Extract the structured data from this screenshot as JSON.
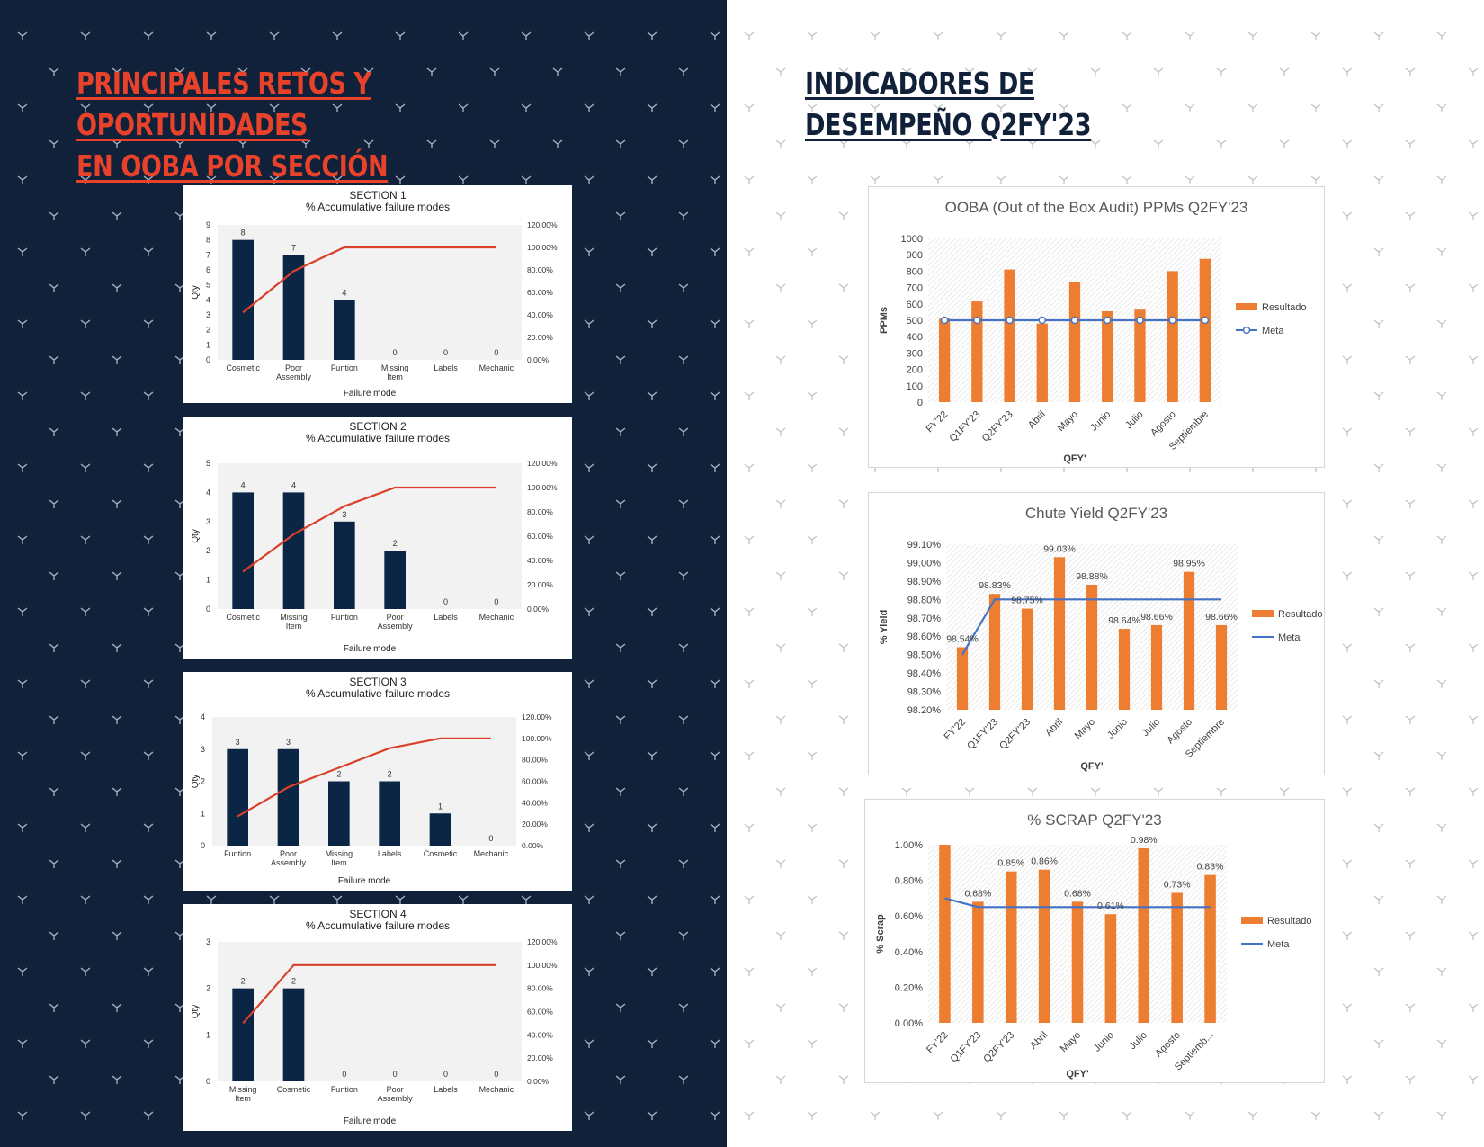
{
  "left_heading": {
    "line1": "PRINCIPALES RETOS Y OPORTUNIDADES",
    "line2": "EN OOBA POR SECCIÓN"
  },
  "right_heading": {
    "line1": "INDICADORES DE",
    "line2": "DESEMPEÑO Q2FY'23"
  },
  "colors": {
    "navy_bg": "#11213a",
    "accent_red": "#e8432a",
    "section_bar": "#0b2545",
    "section_line": "#d9412b",
    "result_bar": "#ed7d31",
    "meta_line": "#4472c4"
  },
  "chart_data": [
    {
      "id": "section1",
      "type": "bar",
      "title": "SECTION 1",
      "subtitle": "% Accumulative failure modes",
      "xlabel": "Failure mode",
      "ylabel": "Qty",
      "categories": [
        "Cosmetic",
        "Poor Assembly",
        "Funtion",
        "Missing Item",
        "Labels",
        "Mechanic"
      ],
      "values": [
        8,
        7,
        4,
        0,
        0,
        0
      ],
      "line_values": [
        42.1,
        78.9,
        100,
        100,
        100,
        100
      ],
      "ylim": [
        0,
        9
      ],
      "y_ticks": [
        "0",
        "1",
        "2",
        "3",
        "4",
        "5",
        "6",
        "7",
        "8",
        "9"
      ],
      "y2_ticks": [
        "0.00%",
        "20.00%",
        "40.00%",
        "60.00%",
        "80.00%",
        "100.00%",
        "120.00%"
      ],
      "y2lim": [
        0,
        120
      ]
    },
    {
      "id": "section2",
      "type": "bar",
      "title": "SECTION 2",
      "subtitle": "% Accumulative failure modes",
      "xlabel": "Failure mode",
      "ylabel": "Qty",
      "categories": [
        "Cosmetic",
        "Missing Item",
        "Funtion",
        "Poor Assembly",
        "Labels",
        "Mechanic"
      ],
      "values": [
        4,
        4,
        3,
        2,
        0,
        0
      ],
      "line_values": [
        30.8,
        61.5,
        84.6,
        100,
        100,
        100
      ],
      "ylim": [
        0,
        5
      ],
      "y_ticks": [
        "0",
        "1",
        "2",
        "3",
        "4",
        "5"
      ],
      "y2_ticks": [
        "0.00%",
        "20.00%",
        "40.00%",
        "60.00%",
        "80.00%",
        "100.00%",
        "120.00%"
      ],
      "y2lim": [
        0,
        120
      ]
    },
    {
      "id": "section3",
      "type": "bar",
      "title": "SECTION 3",
      "subtitle": "% Accumulative failure modes",
      "xlabel": "Failure mode",
      "ylabel": "Qty",
      "categories": [
        "Funtion",
        "Poor Assembly",
        "Missing Item",
        "Labels",
        "Cosmetic",
        "Mechanic"
      ],
      "values": [
        3,
        3,
        2,
        2,
        1,
        0
      ],
      "line_values": [
        27.3,
        54.5,
        72.7,
        90.9,
        100,
        100
      ],
      "ylim": [
        0,
        4
      ],
      "y_ticks": [
        "0",
        "1",
        "2",
        "3",
        "4"
      ],
      "y2_ticks": [
        "0.00%",
        "20.00%",
        "40.00%",
        "60.00%",
        "80.00%",
        "100.00%",
        "120.00%"
      ],
      "y2lim": [
        0,
        120
      ]
    },
    {
      "id": "section4",
      "type": "bar",
      "title": "SECTION 4",
      "subtitle": "% Accumulative failure modes",
      "xlabel": "Failure mode",
      "ylabel": "Qty",
      "categories": [
        "Missing Item",
        "Cosmetic",
        "Funtion",
        "Poor Assembly",
        "Labels",
        "Mechanic"
      ],
      "values": [
        2,
        2,
        0,
        0,
        0,
        0
      ],
      "line_values": [
        50,
        100,
        100,
        100,
        100,
        100
      ],
      "ylim": [
        0,
        3
      ],
      "y_ticks": [
        "0",
        "1",
        "2",
        "3"
      ],
      "y2_ticks": [
        "0.00%",
        "20.00%",
        "40.00%",
        "60.00%",
        "80.00%",
        "100.00%",
        "120.00%"
      ],
      "y2lim": [
        0,
        120
      ]
    },
    {
      "id": "ooba",
      "type": "bar",
      "title": "OOBA (Out of the Box Audit) PPMs Q2FY'23",
      "xlabel": "QFY'",
      "ylabel": "PPMs",
      "categories": [
        "FY'22",
        "Q1FY'23",
        "Q2FY'23",
        "Abril",
        "Mayo",
        "Junio",
        "Julio",
        "Agosto",
        "Septiembre"
      ],
      "series": [
        {
          "name": "Resultado",
          "values": [
            510,
            615,
            810,
            480,
            735,
            555,
            565,
            800,
            875
          ]
        },
        {
          "name": "Meta",
          "values": [
            500,
            500,
            500,
            500,
            500,
            500,
            500,
            500,
            500
          ]
        }
      ],
      "ylim": [
        0,
        1000
      ],
      "y_ticks": [
        "0",
        "100",
        "200",
        "300",
        "400",
        "500",
        "600",
        "700",
        "800",
        "900",
        "1000"
      ],
      "legend": "right"
    },
    {
      "id": "chute",
      "type": "bar",
      "title": "Chute Yield Q2FY'23",
      "xlabel": "QFY'",
      "ylabel": "% Yield",
      "categories": [
        "FY'22",
        "Q1FY'23",
        "Q2FY'23",
        "Abril",
        "Mayo",
        "Junio",
        "Julio",
        "Agosto",
        "Septiembre"
      ],
      "series": [
        {
          "name": "Resultado",
          "values": [
            98.54,
            98.83,
            98.75,
            99.03,
            98.88,
            98.64,
            98.66,
            98.95,
            98.66
          ]
        },
        {
          "name": "Meta",
          "values": [
            98.5,
            98.8,
            98.8,
            98.8,
            98.8,
            98.8,
            98.8,
            98.8,
            98.8
          ]
        }
      ],
      "data_labels": [
        "98.54%",
        "98.83%",
        "98.75%",
        "99.03%",
        "98.88%",
        "98.64%",
        "98.66%",
        "98.95%",
        "98.66%"
      ],
      "ylim": [
        98.2,
        99.1
      ],
      "y_ticks": [
        "98.20%",
        "98.30%",
        "98.40%",
        "98.50%",
        "98.60%",
        "98.70%",
        "98.80%",
        "98.90%",
        "99.00%",
        "99.10%"
      ],
      "legend": "right"
    },
    {
      "id": "scrap",
      "type": "bar",
      "title": "% SCRAP Q2FY'23",
      "xlabel": "QFY'",
      "ylabel": "% Scrap",
      "categories": [
        "FY'22",
        "Q1FY'23",
        "Q2FY'23",
        "Abril",
        "Mayo",
        "Junio",
        "Julio",
        "Agosto",
        "Septiemb..."
      ],
      "series": [
        {
          "name": "Resultado",
          "values": [
            1.0,
            0.68,
            0.85,
            0.86,
            0.68,
            0.61,
            0.98,
            0.73,
            0.83
          ]
        },
        {
          "name": "Meta",
          "values": [
            0.7,
            0.65,
            0.65,
            0.65,
            0.65,
            0.65,
            0.65,
            0.65,
            0.65
          ]
        }
      ],
      "data_labels": [
        "",
        "0.68%",
        "0.85%",
        "0.86%",
        "0.68%",
        "0.61%",
        "0.98%",
        "0.73%",
        "0.83%"
      ],
      "ylim": [
        0,
        1.0
      ],
      "y_ticks": [
        "0.00%",
        "0.20%",
        "0.40%",
        "0.60%",
        "0.80%",
        "1.00%"
      ],
      "legend": "right"
    }
  ]
}
